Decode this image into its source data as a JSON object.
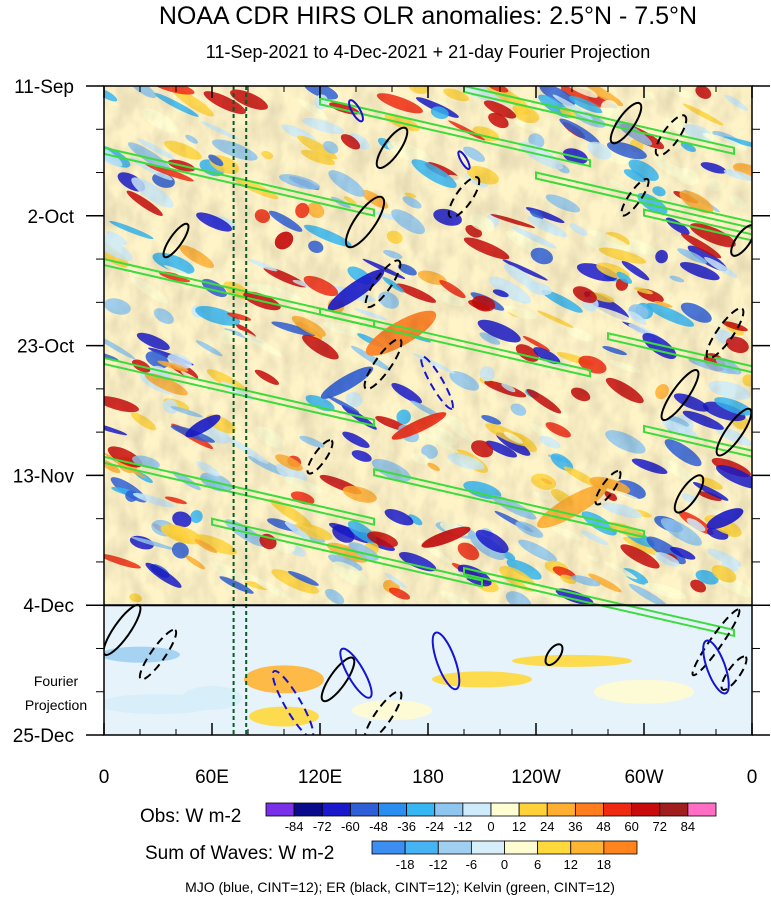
{
  "chart_data": {
    "type": "heatmap",
    "title": "NOAA CDR HIRS OLR anomalies: 2.5°N - 7.5°N",
    "subtitle": "11-Sep-2021 to 4-Dec-2021 + 21-day Fourier Projection",
    "x_tick_labels": [
      "0",
      "60E",
      "120E",
      "180",
      "120W",
      "60W",
      "0"
    ],
    "x_ticks_deg": [
      0,
      60,
      120,
      180,
      240,
      300,
      360
    ],
    "y_tick_labels": [
      "11-Sep",
      "2-Oct",
      "23-Oct",
      "13-Nov",
      "4-Dec",
      "25-Dec"
    ],
    "y_ticks_day": [
      0,
      21,
      42,
      63,
      84,
      105
    ],
    "observation_end_day": 84,
    "projection_label": "Fourier\nProjection",
    "reference_lines_deg": [
      72,
      79
    ],
    "obs_colorbar": {
      "label": "Obs: W m-2",
      "levels": [
        "-84",
        "-72",
        "-60",
        "-48",
        "-36",
        "-24",
        "-12",
        "0",
        "12",
        "24",
        "36",
        "48",
        "60",
        "72",
        "84"
      ],
      "colors": [
        "#7a30e6",
        "#0a0a8c",
        "#1a1acc",
        "#2f5fd6",
        "#2a8ef0",
        "#36b6f2",
        "#8fc6ef",
        "#cdebfa",
        "#fffdd2",
        "#ffd23c",
        "#ffae32",
        "#ff7d1e",
        "#f02a12",
        "#c80a0a",
        "#a01e1e",
        "#ff6ec4"
      ]
    },
    "wave_colorbar": {
      "label": "Sum of Waves: W m-2",
      "levels": [
        "-18",
        "-12",
        "-6",
        "0",
        "6",
        "12",
        "18"
      ],
      "colors": [
        "#3c8ef0",
        "#46b4f2",
        "#a0cff2",
        "#d6eef9",
        "#fffcd2",
        "#ffd83c",
        "#ffb432",
        "#ff841e"
      ]
    },
    "legend_text": "MJO (blue, CINT=12); ER (black, CINT=12); Kelvin (green, CINT=12)",
    "series": [
      {
        "name": "MJO",
        "color": "#1414d2",
        "cint": 12
      },
      {
        "name": "ER",
        "color": "#000000",
        "cint": 12
      },
      {
        "name": "Kelvin",
        "color": "#3cdc3c",
        "cint": 12
      }
    ],
    "grid": false
  }
}
